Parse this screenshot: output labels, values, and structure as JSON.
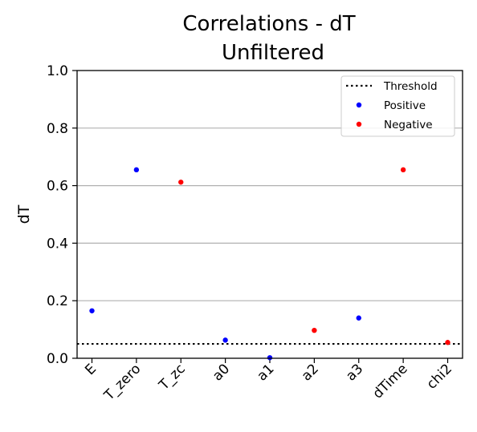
{
  "chart_data": {
    "type": "scatter",
    "title": "Correlations - dT",
    "subtitle": "Unfiltered",
    "xlabel": "",
    "ylabel": "dT",
    "ylim": [
      0,
      1
    ],
    "yticks": [
      "0.0",
      "0.2",
      "0.4",
      "0.6",
      "0.8",
      "1.0"
    ],
    "grid": "horizontal",
    "categories": [
      "E",
      "T_zero",
      "T_zc",
      "a0",
      "a1",
      "a2",
      "a3",
      "dTime",
      "chi2"
    ],
    "threshold": {
      "name": "Threshold",
      "value": 0.05,
      "color": "#000000",
      "style": "dotted"
    },
    "series": [
      {
        "name": "Positive",
        "color": "#0000ff",
        "points": [
          {
            "x": "E",
            "y": 0.165
          },
          {
            "x": "T_zero",
            "y": 0.655
          },
          {
            "x": "a0",
            "y": 0.063
          },
          {
            "x": "a1",
            "y": 0.002
          },
          {
            "x": "a3",
            "y": 0.14
          }
        ]
      },
      {
        "name": "Negative",
        "color": "#ff0000",
        "points": [
          {
            "x": "T_zc",
            "y": 0.612
          },
          {
            "x": "a2",
            "y": 0.097
          },
          {
            "x": "dTime",
            "y": 0.655
          },
          {
            "x": "chi2",
            "y": 0.055
          }
        ]
      }
    ],
    "legend": "top-right"
  }
}
